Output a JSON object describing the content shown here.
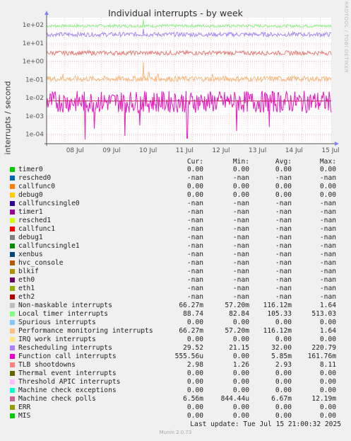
{
  "title": "Individual interrupts - by week",
  "ylabel": "interrupts / second",
  "side_text": "RRDTOOL / TOBI OETIKER",
  "footer": "Munin 2.0.73",
  "last_update": "Last update: Tue Jul 15 21:00:32 2025",
  "columns": [
    "Cur:",
    "Min:",
    "Avg:",
    "Max:"
  ],
  "chart_data": {
    "type": "line",
    "title": "Individual interrupts - by week",
    "ylabel": "interrupts / second",
    "y_scale": "log",
    "ylim": [
      3e-05,
      250
    ],
    "yticks": [
      {
        "value": 100,
        "label": "1e+02"
      },
      {
        "value": 10,
        "label": "1e+01"
      },
      {
        "value": 1,
        "label": "1e+00"
      },
      {
        "value": 0.1,
        "label": "1e-01"
      },
      {
        "value": 0.01,
        "label": "1e-02"
      },
      {
        "value": 0.001,
        "label": "1e-03"
      },
      {
        "value": 0.0001,
        "label": "1e-04"
      }
    ],
    "xlim": [
      0,
      7.8
    ],
    "xticks": [
      {
        "value": 0.78,
        "label": "08 Jul"
      },
      {
        "value": 1.78,
        "label": "09 Jul"
      },
      {
        "value": 2.78,
        "label": "10 Jul"
      },
      {
        "value": 3.78,
        "label": "11 Jul"
      },
      {
        "value": 4.78,
        "label": "12 Jul"
      },
      {
        "value": 5.78,
        "label": "13 Jul"
      },
      {
        "value": 6.78,
        "label": "14 Jul"
      },
      {
        "value": 7.78,
        "label": "15 Jul"
      }
    ],
    "grid": true,
    "series": [
      {
        "name": "Local timer interrupts",
        "color": "#8bf58b",
        "level": 88,
        "jitter": 0.08,
        "spikes": [
          [
            2.65,
            200
          ]
        ]
      },
      {
        "name": "Rescheduling interrupts",
        "color": "#a88af0",
        "level": 30,
        "jitter": 0.12,
        "spikes": [
          [
            2.65,
            60
          ]
        ]
      },
      {
        "name": "TLB shootdowns",
        "color": "#e4807b",
        "level": 2.9,
        "jitter": 0.12,
        "spikes": []
      },
      {
        "name": "Performance monitoring interrupts",
        "color": "#f8b87d",
        "level": 0.11,
        "jitter": 0.15,
        "spikes": [
          [
            0.45,
            0.2
          ],
          [
            2.65,
            0.9
          ],
          [
            2.8,
            0.25
          ],
          [
            3.05,
            0.2
          ],
          [
            4.55,
            0.2
          ]
        ]
      },
      {
        "name": "Function call interrupts",
        "color": "#e81ac1",
        "level": 0.006,
        "jitter": 0.6,
        "spikes": [
          [
            1.05,
            5e-05
          ],
          [
            1.3,
            0.0002
          ],
          [
            2.15,
            8e-05
          ],
          [
            2.55,
            0.0003
          ],
          [
            3.85,
            6e-05
          ],
          [
            5.2,
            0.00015
          ],
          [
            6.1,
            0.00025
          ],
          [
            7.95,
            5e-05
          ]
        ]
      },
      {
        "name": "Machine check polls",
        "color": "#c42b62",
        "level": 0.0067,
        "jitter": 0.02,
        "spikes": []
      }
    ]
  },
  "legend": [
    {
      "name": "timer0",
      "color": "#00cc00",
      "cur": "0.00",
      "min": "0.00",
      "avg": "0.00",
      "max": "0.00"
    },
    {
      "name": "resched0",
      "color": "#0066b3",
      "cur": "-nan",
      "min": "-nan",
      "avg": "-nan",
      "max": "-nan"
    },
    {
      "name": "callfunc0",
      "color": "#ff8000",
      "cur": "0.00",
      "min": "0.00",
      "avg": "0.00",
      "max": "0.00"
    },
    {
      "name": "debug0",
      "color": "#ffcc00",
      "cur": "0.00",
      "min": "0.00",
      "avg": "0.00",
      "max": "0.00"
    },
    {
      "name": "callfuncsingle0",
      "color": "#330099",
      "cur": "-nan",
      "min": "-nan",
      "avg": "-nan",
      "max": "-nan"
    },
    {
      "name": "timer1",
      "color": "#990099",
      "cur": "-nan",
      "min": "-nan",
      "avg": "-nan",
      "max": "-nan"
    },
    {
      "name": "resched1",
      "color": "#ccff00",
      "cur": "-nan",
      "min": "-nan",
      "avg": "-nan",
      "max": "-nan"
    },
    {
      "name": "callfunc1",
      "color": "#ff0000",
      "cur": "-nan",
      "min": "-nan",
      "avg": "-nan",
      "max": "-nan"
    },
    {
      "name": "debug1",
      "color": "#808080",
      "cur": "-nan",
      "min": "-nan",
      "avg": "-nan",
      "max": "-nan"
    },
    {
      "name": "callfuncsingle1",
      "color": "#008f00",
      "cur": "-nan",
      "min": "-nan",
      "avg": "-nan",
      "max": "-nan"
    },
    {
      "name": "xenbus",
      "color": "#00487d",
      "cur": "-nan",
      "min": "-nan",
      "avg": "-nan",
      "max": "-nan"
    },
    {
      "name": "hvc_console",
      "color": "#b35a00",
      "cur": "-nan",
      "min": "-nan",
      "avg": "-nan",
      "max": "-nan"
    },
    {
      "name": "blkif",
      "color": "#b38f00",
      "cur": "-nan",
      "min": "-nan",
      "avg": "-nan",
      "max": "-nan"
    },
    {
      "name": "eth0",
      "color": "#6b006b",
      "cur": "-nan",
      "min": "-nan",
      "avg": "-nan",
      "max": "-nan"
    },
    {
      "name": "eth1",
      "color": "#8fb300",
      "cur": "-nan",
      "min": "-nan",
      "avg": "-nan",
      "max": "-nan"
    },
    {
      "name": "eth2",
      "color": "#b30000",
      "cur": "-nan",
      "min": "-nan",
      "avg": "-nan",
      "max": "-nan"
    },
    {
      "name": "Non-maskable interrupts",
      "color": "#bebebe",
      "cur": "66.27m",
      "min": "57.20m",
      "avg": "116.12m",
      "max": "1.64"
    },
    {
      "name": "Local timer interrupts",
      "color": "#80ff80",
      "cur": "88.74",
      "min": "82.84",
      "avg": "105.33",
      "max": "513.03"
    },
    {
      "name": "Spurious interrupts",
      "color": "#80c9ff",
      "cur": "0.00",
      "min": "0.00",
      "avg": "0.00",
      "max": "0.00"
    },
    {
      "name": "Performance monitoring interrupts",
      "color": "#ffc080",
      "cur": "66.27m",
      "min": "57.20m",
      "avg": "116.12m",
      "max": "1.64"
    },
    {
      "name": "IRQ work interrupts",
      "color": "#ffe680",
      "cur": "0.00",
      "min": "0.00",
      "avg": "0.00",
      "max": "0.00"
    },
    {
      "name": "Rescheduling interrupts",
      "color": "#aa80ff",
      "cur": "29.52",
      "min": "21.15",
      "avg": "32.00",
      "max": "220.79"
    },
    {
      "name": "Function call interrupts",
      "color": "#ee00cc",
      "cur": "555.56u",
      "min": "0.00",
      "avg": "5.85m",
      "max": "161.76m"
    },
    {
      "name": "TLB shootdowns",
      "color": "#ff8080",
      "cur": "2.98",
      "min": "1.26",
      "avg": "2.93",
      "max": "8.11"
    },
    {
      "name": "Thermal event interrupts",
      "color": "#666600",
      "cur": "0.00",
      "min": "0.00",
      "avg": "0.00",
      "max": "0.00"
    },
    {
      "name": "Threshold APIC interrupts",
      "color": "#ffbfff",
      "cur": "0.00",
      "min": "0.00",
      "avg": "0.00",
      "max": "0.00"
    },
    {
      "name": "Machine check exceptions",
      "color": "#00ffcc",
      "cur": "0.00",
      "min": "0.00",
      "avg": "0.00",
      "max": "0.00"
    },
    {
      "name": "Machine check polls",
      "color": "#cc6699",
      "cur": "6.56m",
      "min": "844.44u",
      "avg": "6.67m",
      "max": "12.19m"
    },
    {
      "name": "ERR",
      "color": "#999900",
      "cur": "0.00",
      "min": "0.00",
      "avg": "0.00",
      "max": "0.00"
    },
    {
      "name": "MIS",
      "color": "#00cc00",
      "cur": "0.00",
      "min": "0.00",
      "avg": "0.00",
      "max": "0.00"
    }
  ]
}
